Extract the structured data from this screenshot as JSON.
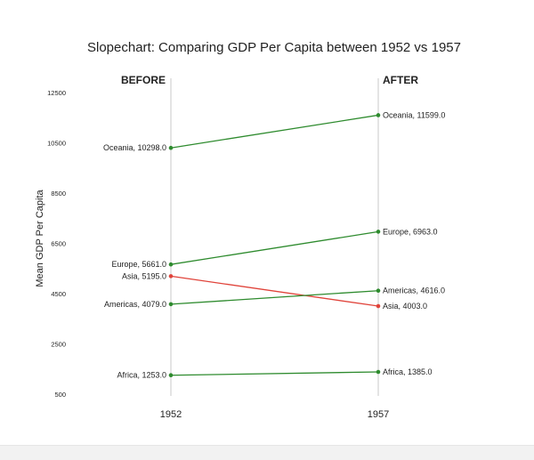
{
  "chart_data": {
    "type": "line",
    "title": "Slopechart: Comparing GDP Per Capita between 1952 vs 1957",
    "ylabel": "Mean GDP Per Capita",
    "xlabel": "",
    "headers": [
      "BEFORE",
      "AFTER"
    ],
    "x_categories": [
      "1952",
      "1957"
    ],
    "ylim": [
      500,
      13000
    ],
    "yticks": [
      500,
      2500,
      4500,
      6500,
      8500,
      10500,
      12500
    ],
    "grid": false,
    "colors": {
      "increase": "#2e8b2e",
      "decrease": "#e0433a",
      "axis_line": "#c8c8c8",
      "text": "#222222"
    },
    "series": [
      {
        "name": "Oceania",
        "before": 10298.0,
        "after": 11599.0,
        "before_label": "Oceania, 10298.0",
        "after_label": "Oceania, 11599.0"
      },
      {
        "name": "Europe",
        "before": 5661.0,
        "after": 6963.0,
        "before_label": "Europe, 5661.0",
        "after_label": "Europe, 6963.0"
      },
      {
        "name": "Asia",
        "before": 5195.0,
        "after": 4003.0,
        "before_label": "Asia, 5195.0",
        "after_label": "Asia, 4003.0"
      },
      {
        "name": "Americas",
        "before": 4079.0,
        "after": 4616.0,
        "before_label": "Americas, 4079.0",
        "after_label": "Americas, 4616.0"
      },
      {
        "name": "Africa",
        "before": 1253.0,
        "after": 1385.0,
        "before_label": "Africa, 1253.0",
        "after_label": "Africa, 1385.0"
      }
    ]
  }
}
